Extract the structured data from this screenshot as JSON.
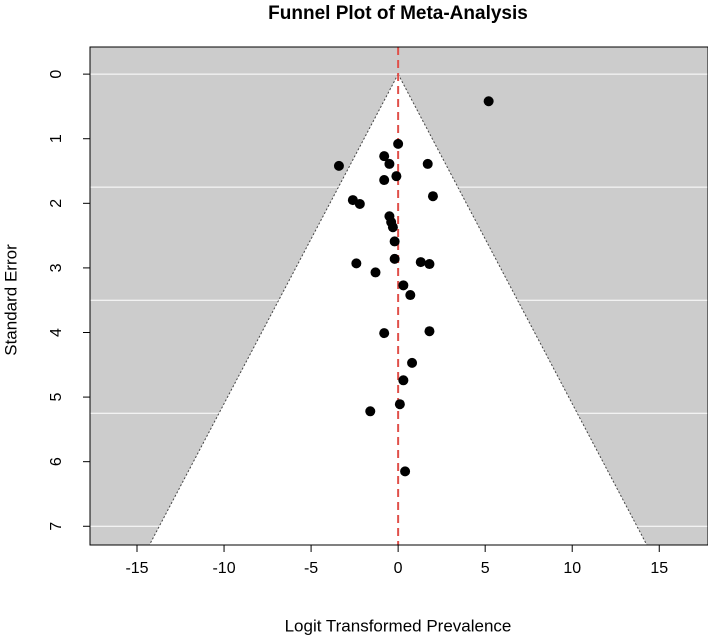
{
  "chart_data": {
    "type": "scatter",
    "title": "Funnel Plot of Meta-Analysis",
    "x_label": "Logit Transformed Prevalence",
    "y_label": "Standard Error",
    "x": [
      5.2,
      0.0,
      -0.8,
      -0.5,
      -3.4,
      1.7,
      -0.1,
      -0.8,
      2.0,
      -2.6,
      -2.2,
      -0.5,
      -0.4,
      -0.3,
      -0.2,
      -0.2,
      -2.4,
      1.3,
      1.8,
      -1.3,
      0.3,
      0.7,
      1.8,
      -0.8,
      0.8,
      0.3,
      0.1,
      -1.6,
      0.4
    ],
    "values": [
      0.42,
      1.08,
      1.27,
      1.39,
      1.42,
      1.39,
      1.58,
      1.64,
      1.89,
      1.95,
      2.01,
      2.2,
      2.29,
      2.37,
      2.59,
      2.86,
      2.93,
      2.91,
      2.94,
      3.07,
      3.27,
      3.42,
      3.98,
      4.01,
      4.47,
      4.74,
      5.11,
      5.22,
      6.15
    ],
    "color": "#000000",
    "xlim": [
      -17.7,
      17.8
    ],
    "xticks": [
      -15,
      -10,
      -5,
      0,
      5,
      10,
      15
    ],
    "ylim": [
      -0.42,
      7.29
    ],
    "yticks": [
      0,
      1,
      2,
      3,
      4,
      5,
      6,
      7
    ],
    "y_reversed": true,
    "grid_lines": [
      0,
      1.75,
      3.5,
      5.25,
      7
    ],
    "funnel": {
      "center": 0,
      "z": 1.96,
      "background": "#cccccc",
      "center_line_color": "#e0504a"
    }
  }
}
